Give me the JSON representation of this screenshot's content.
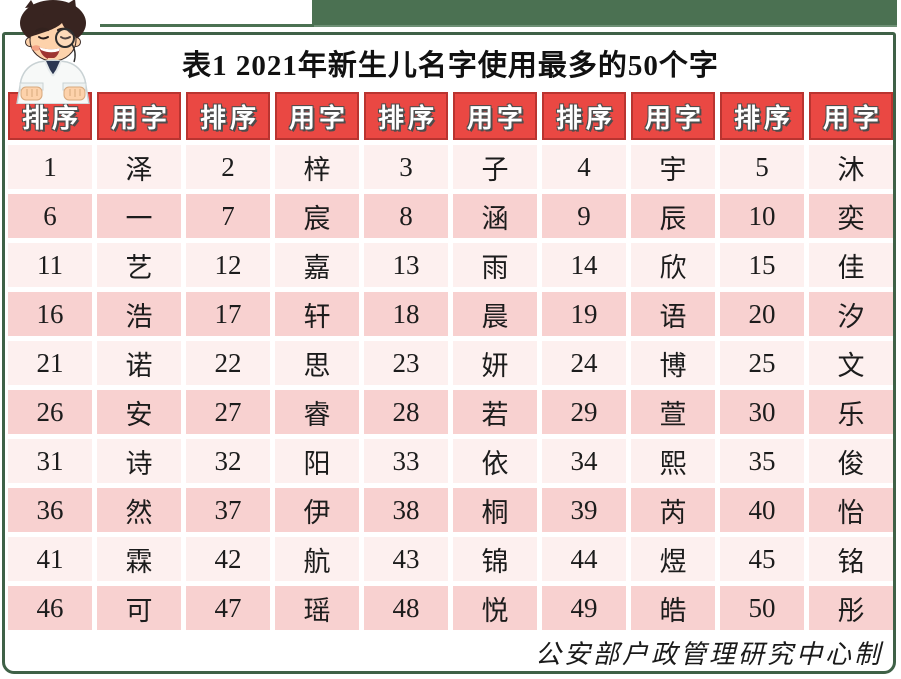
{
  "page": {
    "credit": "公安部户政管理研究中心制",
    "avatar_icon": "doctor-cartoon-avatar"
  },
  "chart_data": {
    "type": "table",
    "title": "表1  2021年新生儿名字使用最多的50个字",
    "columns": [
      "排序",
      "用字",
      "排序",
      "用字",
      "排序",
      "用字",
      "排序",
      "用字",
      "排序",
      "用字"
    ],
    "rows": [
      [
        "1",
        "泽",
        "2",
        "梓",
        "3",
        "子",
        "4",
        "宇",
        "5",
        "沐"
      ],
      [
        "6",
        "一",
        "7",
        "宸",
        "8",
        "涵",
        "9",
        "辰",
        "10",
        "奕"
      ],
      [
        "11",
        "艺",
        "12",
        "嘉",
        "13",
        "雨",
        "14",
        "欣",
        "15",
        "佳"
      ],
      [
        "16",
        "浩",
        "17",
        "轩",
        "18",
        "晨",
        "19",
        "语",
        "20",
        "汐"
      ],
      [
        "21",
        "诺",
        "22",
        "思",
        "23",
        "妍",
        "24",
        "博",
        "25",
        "文"
      ],
      [
        "26",
        "安",
        "27",
        "睿",
        "28",
        "若",
        "29",
        "萱",
        "30",
        "乐"
      ],
      [
        "31",
        "诗",
        "32",
        "阳",
        "33",
        "依",
        "34",
        "熙",
        "35",
        "俊"
      ],
      [
        "36",
        "然",
        "37",
        "伊",
        "38",
        "桐",
        "39",
        "芮",
        "40",
        "怡"
      ],
      [
        "41",
        "霖",
        "42",
        "航",
        "43",
        "锦",
        "44",
        "煜",
        "45",
        "铭"
      ],
      [
        "46",
        "可",
        "47",
        "瑶",
        "48",
        "悦",
        "49",
        "皓",
        "50",
        "彤"
      ]
    ],
    "ranked_characters": [
      "泽",
      "梓",
      "子",
      "宇",
      "沐",
      "一",
      "宸",
      "涵",
      "辰",
      "奕",
      "艺",
      "嘉",
      "雨",
      "欣",
      "佳",
      "浩",
      "轩",
      "晨",
      "语",
      "汐",
      "诺",
      "思",
      "妍",
      "博",
      "文",
      "安",
      "睿",
      "若",
      "萱",
      "乐",
      "诗",
      "阳",
      "依",
      "熙",
      "俊",
      "然",
      "伊",
      "桐",
      "芮",
      "怡",
      "霖",
      "航",
      "锦",
      "煜",
      "铭",
      "可",
      "瑶",
      "悦",
      "皓",
      "彤"
    ]
  },
  "colors": {
    "header_red": "#ea4843",
    "header_red_border": "#b93430",
    "row_light_pink": "#fdf0ef",
    "row_dark_pink": "#f8d1d0",
    "accent_green": "#4b7152",
    "frame_green": "#3f6147"
  }
}
